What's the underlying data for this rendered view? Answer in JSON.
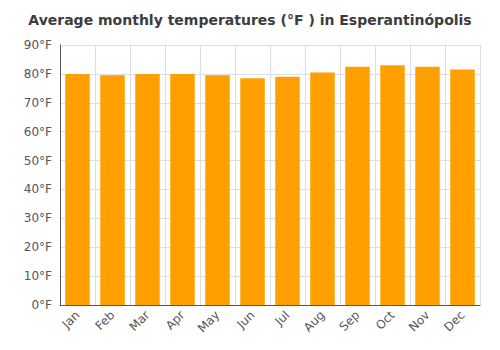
{
  "chart_data": {
    "type": "bar",
    "title": "Average monthly temperatures (°F ) in Esperantinópolis",
    "categories": [
      "Jan",
      "Feb",
      "Mar",
      "Apr",
      "May",
      "Jun",
      "Jul",
      "Aug",
      "Sep",
      "Oct",
      "Nov",
      "Dec"
    ],
    "values": [
      80.0,
      79.5,
      80.0,
      80.0,
      79.5,
      78.5,
      79.0,
      80.5,
      82.5,
      83.0,
      82.5,
      81.5
    ],
    "color": "#FFA000",
    "ylim": [
      0,
      90
    ],
    "yticks": [
      {
        "value": 0,
        "label": "0°F"
      },
      {
        "value": 10,
        "label": "10°F"
      },
      {
        "value": 20,
        "label": "20°F"
      },
      {
        "value": 30,
        "label": "30°F"
      },
      {
        "value": 40,
        "label": "40°F"
      },
      {
        "value": 50,
        "label": "50°F"
      },
      {
        "value": 60,
        "label": "60°F"
      },
      {
        "value": 70,
        "label": "70°F"
      },
      {
        "value": 80,
        "label": "80°F"
      },
      {
        "value": 90,
        "label": "90°F"
      }
    ],
    "grid": true
  }
}
